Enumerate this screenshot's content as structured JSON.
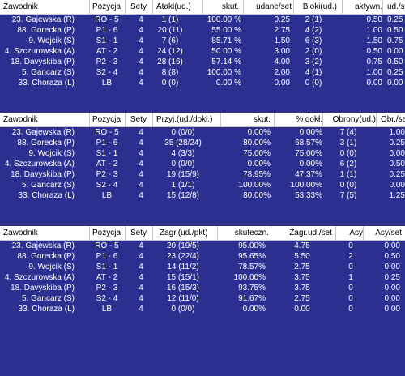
{
  "tables": [
    {
      "headers": [
        "Zawodnik",
        "Pozycja",
        "Sety",
        "Ataki(ud.)",
        "skut.",
        "udane/set",
        "Bloki(ud.)",
        "aktywn.",
        "ud./set"
      ],
      "rows": [
        [
          "23. Gajewska (R)",
          "RO - 5",
          "4",
          "1 (1)",
          "100.00 %",
          "0.25",
          "2 (1)",
          "0.50",
          "0.25"
        ],
        [
          "88. Gorecka (P)",
          "P1 - 6",
          "4",
          "20 (11)",
          "55.00 %",
          "2.75",
          "4 (2)",
          "1.00",
          "0.50"
        ],
        [
          "9. Wojcik (S)",
          "S1 - 1",
          "4",
          "7 (6)",
          "85.71 %",
          "1.50",
          "6 (3)",
          "1.50",
          "0.75"
        ],
        [
          "4. Szczurowska (A)",
          "AT - 2",
          "4",
          "24 (12)",
          "50.00 %",
          "3.00",
          "2 (0)",
          "0.50",
          "0.00"
        ],
        [
          "18. Davyskiba (P)",
          "P2 - 3",
          "4",
          "28 (16)",
          "57.14 %",
          "4.00",
          "3 (2)",
          "0.75",
          "0.50"
        ],
        [
          "5. Gancarz (S)",
          "S2 - 4",
          "4",
          "8 (8)",
          "100.00 %",
          "2.00",
          "4 (1)",
          "1.00",
          "0.25"
        ],
        [
          "33. Choraza (L)",
          "LB",
          "4",
          "0 (0)",
          "0.00 %",
          "0.00",
          "0 (0)",
          "0.00",
          "0.00"
        ]
      ]
    },
    {
      "headers": [
        "Zawodnik",
        "Pozycja",
        "Sety",
        "Przyj.(ud./dokł.)",
        "skut.",
        "% dokł.",
        "Obrony(ud.)",
        "Obr./set"
      ],
      "rows": [
        [
          "23. Gajewska (R)",
          "RO - 5",
          "4",
          "0 (0/0)",
          "0.00%",
          "0.00%",
          "7 (4)",
          "1.00"
        ],
        [
          "88. Gorecka (P)",
          "P1 - 6",
          "4",
          "35 (28/24)",
          "80.00%",
          "68.57%",
          "3 (1)",
          "0.25"
        ],
        [
          "9. Wojcik (S)",
          "S1 - 1",
          "4",
          "4 (3/3)",
          "75.00%",
          "75.00%",
          "0 (0)",
          "0.00"
        ],
        [
          "4. Szczurowska (A)",
          "AT - 2",
          "4",
          "0 (0/0)",
          "0.00%",
          "0.00%",
          "6 (2)",
          "0.50"
        ],
        [
          "18. Davyskiba (P)",
          "P2 - 3",
          "4",
          "19 (15/9)",
          "78.95%",
          "47.37%",
          "1 (1)",
          "0.25"
        ],
        [
          "5. Gancarz (S)",
          "S2 - 4",
          "4",
          "1 (1/1)",
          "100.00%",
          "100.00%",
          "0 (0)",
          "0.00"
        ],
        [
          "33. Choraza (L)",
          "LB",
          "4",
          "15 (12/8)",
          "80.00%",
          "53.33%",
          "7 (5)",
          "1.25"
        ]
      ]
    },
    {
      "headers": [
        "Zawodnik",
        "Pozycja",
        "Sety",
        "Zagr.(ud./pkt)",
        "skuteczn.",
        "Zagr.ud./set",
        "Asy",
        "Asy/set"
      ],
      "rows": [
        [
          "23. Gajewska (R)",
          "RO - 5",
          "4",
          "20 (19/5)",
          "95.00%",
          "4.75",
          "0",
          "0.00"
        ],
        [
          "88. Gorecka (P)",
          "P1 - 6",
          "4",
          "23 (22/4)",
          "95.65%",
          "5.50",
          "2",
          "0.50"
        ],
        [
          "9. Wojcik (S)",
          "S1 - 1",
          "4",
          "14 (11/2)",
          "78.57%",
          "2.75",
          "0",
          "0.00"
        ],
        [
          "4. Szczurowska (A)",
          "AT - 2",
          "4",
          "15 (15/1)",
          "100.00%",
          "3.75",
          "1",
          "0.25"
        ],
        [
          "18. Davyskiba (P)",
          "P2 - 3",
          "4",
          "16 (15/3)",
          "93.75%",
          "3.75",
          "0",
          "0.00"
        ],
        [
          "5. Gancarz (S)",
          "S2 - 4",
          "4",
          "12 (11/0)",
          "91.67%",
          "2.75",
          "0",
          "0.00"
        ],
        [
          "33. Choraza (L)",
          "LB",
          "4",
          "0 (0/0)",
          "0.00%",
          "0.00",
          "0",
          "0.00"
        ]
      ]
    }
  ]
}
